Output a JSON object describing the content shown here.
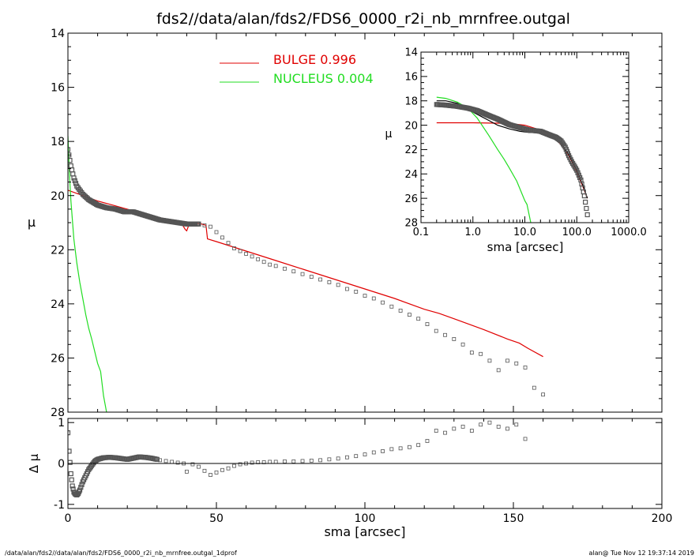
{
  "title": "fds2//data/alan/fds2/FDS6_0000_r2i_nb_mrnfree.outgal",
  "footer": {
    "left": "/data/alan/fds2//data/alan/fds2/FDS6_0000_r2i_nb_mrnfree.outgal_1dprof",
    "right": "alan@  Tue Nov 12 19:37:14 2019"
  },
  "colors": {
    "bulge": "#e00000",
    "nucleus": "#22dd22",
    "data": "#555555",
    "axis": "#000000"
  },
  "chart_data": [
    {
      "type": "line",
      "panel": "main",
      "ylabel": "μ",
      "xlim": [
        0,
        200
      ],
      "ylim": [
        28,
        14
      ],
      "y_inverted": true,
      "yticks": [
        "14",
        "16",
        "18",
        "20",
        "22",
        "24",
        "26",
        "28"
      ],
      "legend": {
        "placement": "top-center",
        "entries": [
          {
            "label": "BULGE  0.996",
            "color": "#e00000"
          },
          {
            "label": "NUCLEUS  0.004",
            "color": "#22dd22"
          }
        ]
      },
      "series": [
        {
          "name": "BULGE  0.996",
          "color": "#e00000",
          "x": [
            0,
            5,
            10,
            15,
            20,
            25,
            30,
            35,
            38,
            39.5,
            40,
            41,
            45,
            46.5,
            47,
            50,
            60,
            70,
            80,
            90,
            100,
            110,
            120,
            125,
            130,
            140,
            148,
            152,
            155,
            160
          ],
          "y": [
            19.8,
            20.0,
            20.2,
            20.35,
            20.5,
            20.65,
            20.8,
            20.9,
            20.98,
            21.25,
            21.3,
            21.0,
            21.05,
            21.1,
            21.6,
            21.7,
            22.05,
            22.4,
            22.75,
            23.1,
            23.45,
            23.8,
            24.2,
            24.35,
            24.55,
            24.95,
            25.3,
            25.45,
            25.65,
            25.95
          ]
        },
        {
          "name": "NUCLEUS  0.004",
          "color": "#22dd22",
          "x": [
            0,
            0.5,
            1,
            2,
            3,
            4,
            5,
            6,
            7,
            8,
            10,
            11,
            12,
            13
          ],
          "y": [
            17.8,
            19.2,
            20.2,
            21.6,
            22.5,
            23.2,
            23.8,
            24.4,
            24.9,
            25.3,
            26.2,
            26.5,
            27.4,
            28.0
          ]
        },
        {
          "name": "",
          "style": "dense",
          "x": [
            0,
            1,
            2,
            3,
            5,
            7,
            10,
            13,
            16,
            19,
            22,
            25,
            28,
            31,
            34,
            37,
            40,
            44
          ],
          "y": [
            18.3,
            18.9,
            19.35,
            19.65,
            19.95,
            20.15,
            20.35,
            20.45,
            20.5,
            20.6,
            20.6,
            20.7,
            20.8,
            20.9,
            20.95,
            21.0,
            21.05,
            21.05
          ]
        },
        {
          "name": "",
          "style": "markers",
          "x": [
            44,
            46,
            48,
            50,
            52,
            54,
            56,
            58,
            60,
            62,
            64,
            66,
            68,
            70,
            73,
            76,
            79,
            82,
            85,
            88,
            91,
            94,
            97,
            100,
            103,
            106,
            109,
            112,
            115,
            118,
            121,
            124,
            127,
            130,
            133,
            136,
            139,
            142,
            145,
            148,
            151,
            154,
            157,
            160
          ],
          "y": [
            21.05,
            21.1,
            21.15,
            21.35,
            21.55,
            21.75,
            21.95,
            22.05,
            22.15,
            22.25,
            22.35,
            22.45,
            22.55,
            22.6,
            22.7,
            22.8,
            22.9,
            23.0,
            23.1,
            23.2,
            23.3,
            23.45,
            23.55,
            23.7,
            23.8,
            23.95,
            24.1,
            24.25,
            24.4,
            24.55,
            24.75,
            25.0,
            25.15,
            25.3,
            25.5,
            25.8,
            25.85,
            26.1,
            26.45,
            26.1,
            26.2,
            26.35,
            27.1,
            27.35
          ]
        }
      ]
    },
    {
      "type": "scatter",
      "panel": "residual",
      "xlabel": "sma [arcsec]",
      "ylabel": "Δ μ",
      "xlim": [
        0,
        200
      ],
      "ylim": [
        -1.1,
        1.1
      ],
      "xticks": [
        "0",
        "50",
        "100",
        "150",
        "200"
      ],
      "yticks": [
        "1",
        "0",
        "-1"
      ],
      "series": [
        {
          "name": "",
          "style": "dense",
          "x": [
            0,
            0.4,
            1,
            1.5,
            2,
            2.5,
            3,
            3.5,
            4,
            5,
            6,
            7,
            8,
            9,
            10,
            12,
            14,
            16,
            18,
            20,
            22,
            24,
            26,
            28,
            30
          ],
          "y": [
            0.75,
            0.3,
            -0.25,
            -0.55,
            -0.7,
            -0.75,
            -0.77,
            -0.73,
            -0.65,
            -0.45,
            -0.3,
            -0.15,
            -0.05,
            0.05,
            0.1,
            0.14,
            0.15,
            0.14,
            0.12,
            0.1,
            0.13,
            0.16,
            0.15,
            0.13,
            0.1
          ]
        },
        {
          "name": "",
          "style": "markers",
          "x": [
            31,
            33,
            35,
            37,
            39,
            40,
            42,
            44,
            46,
            48,
            50,
            52,
            54,
            56,
            58,
            60,
            62,
            64,
            66,
            68,
            70,
            73,
            76,
            79,
            82,
            85,
            88,
            91,
            94,
            97,
            100,
            103,
            106,
            109,
            112,
            115,
            118,
            121,
            124,
            127,
            130,
            133,
            136,
            139,
            142,
            145,
            148,
            151,
            154
          ],
          "y": [
            0.08,
            0.06,
            0.04,
            0.02,
            0.0,
            -0.2,
            -0.02,
            -0.08,
            -0.18,
            -0.28,
            -0.22,
            -0.16,
            -0.12,
            -0.06,
            -0.02,
            0.0,
            0.02,
            0.03,
            0.03,
            0.04,
            0.04,
            0.05,
            0.05,
            0.06,
            0.07,
            0.08,
            0.1,
            0.12,
            0.15,
            0.18,
            0.22,
            0.27,
            0.3,
            0.35,
            0.37,
            0.4,
            0.45,
            0.55,
            0.8,
            0.75,
            0.85,
            0.9,
            0.8,
            0.95,
            1.0,
            0.9,
            0.85,
            0.95,
            0.6
          ]
        }
      ]
    },
    {
      "type": "line",
      "panel": "inset",
      "xlabel": "sma [arcsec]",
      "ylabel": "μ",
      "x_scale": "log",
      "xlim": [
        0.1,
        1000
      ],
      "ylim": [
        28,
        14
      ],
      "y_inverted": true,
      "xticks": [
        "0.1",
        "1.0",
        "10.0",
        "100.0",
        "1000.0"
      ],
      "yticks": [
        "14",
        "16",
        "18",
        "20",
        "22",
        "24",
        "26",
        "28"
      ],
      "series": [
        {
          "name": "",
          "color": "#e00000",
          "x": [
            0.2,
            1,
            5,
            10,
            20,
            30,
            40,
            50,
            70,
            100,
            130,
            160
          ],
          "y": [
            19.8,
            19.8,
            19.85,
            20.0,
            20.4,
            20.8,
            21.2,
            21.6,
            22.5,
            23.8,
            25.0,
            26.0
          ]
        },
        {
          "name": "",
          "color": "#22dd22",
          "x": [
            0.2,
            0.3,
            0.5,
            0.8,
            1.2,
            2,
            3,
            4,
            5,
            7,
            10,
            11,
            13
          ],
          "y": [
            17.7,
            17.8,
            18.1,
            18.6,
            19.4,
            20.8,
            22.0,
            22.8,
            23.5,
            24.6,
            26.2,
            26.5,
            28.0
          ]
        },
        {
          "name": "",
          "color": "#000000",
          "x": [
            0.2,
            0.3,
            0.5,
            0.8,
            1.2,
            2,
            3,
            5,
            8,
            12,
            20,
            30,
            40,
            50,
            70,
            100,
            130,
            160
          ],
          "y": [
            18.0,
            18.0,
            18.2,
            18.7,
            19.1,
            19.6,
            20.0,
            20.3,
            20.5,
            20.6,
            20.6,
            20.9,
            21.1,
            21.5,
            22.4,
            23.7,
            24.9,
            26.0
          ]
        },
        {
          "name": "",
          "style": "dense",
          "x": [
            0.2,
            0.3,
            0.5,
            0.8,
            1.2,
            2,
            3,
            5,
            8,
            12,
            20,
            30,
            40,
            50,
            60,
            70,
            80,
            100,
            120,
            140,
            160
          ],
          "y": [
            18.3,
            18.35,
            18.45,
            18.6,
            18.8,
            19.2,
            19.5,
            19.95,
            20.2,
            20.4,
            20.5,
            20.8,
            21.0,
            21.3,
            21.8,
            22.5,
            23.0,
            23.7,
            24.5,
            25.8,
            27.35
          ]
        }
      ]
    }
  ]
}
